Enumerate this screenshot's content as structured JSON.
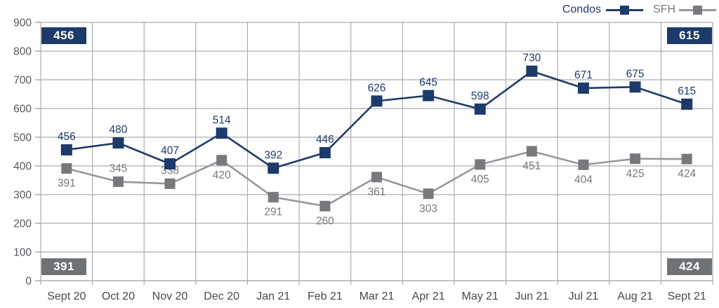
{
  "chart_data": {
    "type": "line",
    "title": "",
    "xlabel": "",
    "ylabel": "",
    "categories": [
      "Sept 20",
      "Oct 20",
      "Nov 20",
      "Dec 20",
      "Jan 21",
      "Feb 21",
      "Mar 21",
      "Apr 21",
      "May 21",
      "Jun 21",
      "Jul 21",
      "Aug 21",
      "Sept 21"
    ],
    "series": [
      {
        "name": "Condos",
        "color": "#1e3a6a",
        "line_color": "#1e3a6a",
        "marker": "square",
        "values": [
          456,
          480,
          407,
          514,
          392,
          446,
          626,
          645,
          598,
          730,
          671,
          675,
          615
        ],
        "label_sides": "above"
      },
      {
        "name": "SFH",
        "color": "#77797c",
        "line_color": "#95989b",
        "marker": "square",
        "values": [
          391,
          345,
          338,
          420,
          291,
          260,
          361,
          303,
          405,
          451,
          404,
          425,
          424
        ],
        "label_sides": [
          "below",
          "above",
          "above",
          "below",
          "below",
          "below",
          "below",
          "below",
          "below",
          "below",
          "below",
          "below",
          "below"
        ]
      }
    ],
    "ylim": [
      0,
      900
    ],
    "ytick_step": 100,
    "ytick_labels": [
      "0",
      "100",
      "200",
      "300",
      "400",
      "500",
      "600",
      "700",
      "800",
      "900"
    ],
    "grid": true,
    "legend_position": "top-right",
    "callouts": {
      "top_left": "456",
      "top_right": "615",
      "bottom_left": "391",
      "bottom_right": "424"
    }
  },
  "colors": {
    "grid": "#a9acaf",
    "axis_line": "#9b9ea1",
    "y_tick_text": "#55585c",
    "x_tick_text": "#46494d",
    "callout_navy": "#1e3a6a",
    "callout_gray": "#6f7275"
  }
}
